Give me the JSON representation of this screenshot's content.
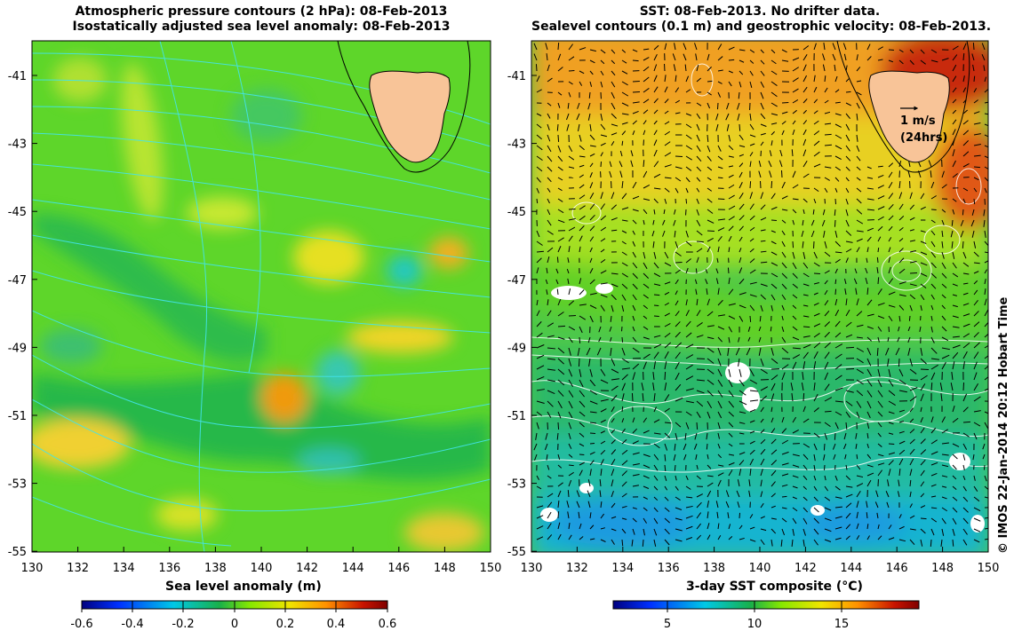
{
  "left_panel": {
    "title_line1": "Atmospheric pressure contours (2 hPa): 08-Feb-2013",
    "title_line2": "Isostatically adjusted sea level anomaly: 08-Feb-2013",
    "colorbar_label": "Sea level anomaly (m)",
    "colorbar_ticks": [
      "-0.6",
      "-0.4",
      "-0.2",
      "0",
      "0.2",
      "0.4",
      "0.6"
    ],
    "colormap": [
      "#00007f",
      "#0030ff",
      "#00c8e6",
      "#18b04a",
      "#86e800",
      "#f0e400",
      "#ff9000",
      "#c81400",
      "#800000"
    ]
  },
  "right_panel": {
    "title_line1": "SST: 08-Feb-2013. No drifter data.",
    "title_line2": "Sealevel contours (0.1 m) and geostrophic velocity: 08-Feb-2013.",
    "colorbar_label": "3-day SST composite (°C)",
    "colorbar_ticks": [
      "5",
      "10",
      "15"
    ],
    "scale_arrow_label_1": "1 m/s",
    "scale_arrow_label_2": "(24hrs)",
    "colormap": [
      "#00007f",
      "#0030ff",
      "#00c8e6",
      "#18b04a",
      "#86e800",
      "#f0e400",
      "#ff9000",
      "#c81400",
      "#800000"
    ]
  },
  "axes": {
    "x_ticks": [
      "130",
      "132",
      "134",
      "136",
      "138",
      "140",
      "142",
      "144",
      "146",
      "148",
      "150"
    ],
    "y_ticks": [
      "-41",
      "-43",
      "-45",
      "-47",
      "-49",
      "-51",
      "-53",
      "-55"
    ]
  },
  "credit": "© IMOS 22-Jan-2014 20:12 Hobart Time",
  "colors": {
    "land": "#f8c498",
    "contour_left": "#40e0e8",
    "contour_right": "#ffffff"
  }
}
